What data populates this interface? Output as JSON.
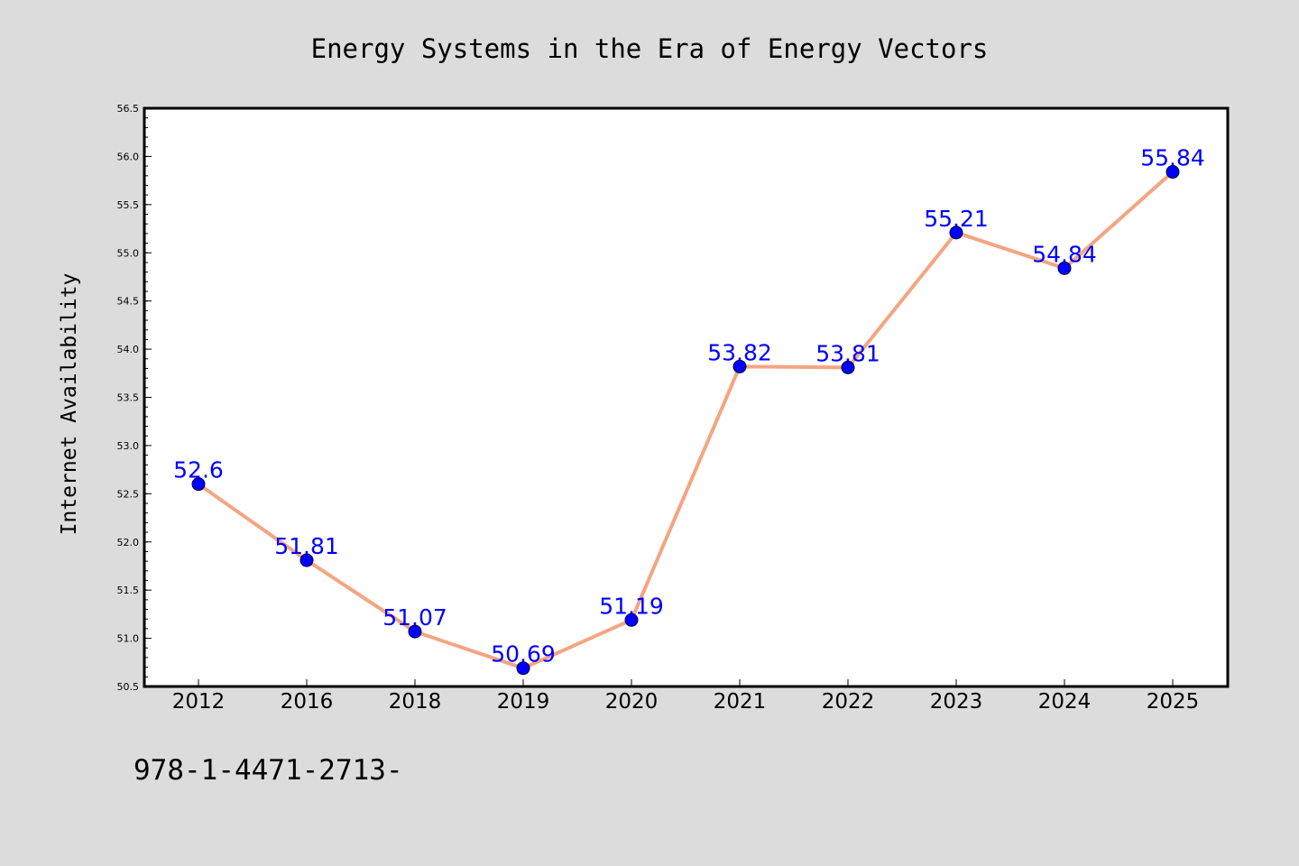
{
  "chart_data": {
    "type": "line",
    "title": "Energy Systems in the Era of Energy Vectors",
    "xlabel": "",
    "ylabel": "Internet Availability",
    "categories": [
      "2012",
      "2016",
      "2018",
      "2019",
      "2020",
      "2021",
      "2022",
      "2023",
      "2024",
      "2025"
    ],
    "series": [
      {
        "values": [
          52.6,
          51.81,
          51.07,
          50.69,
          51.19,
          53.82,
          53.81,
          55.21,
          54.84,
          55.84
        ],
        "data_labels": [
          "52.6",
          "51.81",
          "51.07",
          "50.69",
          "51.19",
          "53.82",
          "53.81",
          "55.21",
          "54.84",
          "55.84"
        ]
      }
    ],
    "ylim": [
      50.5,
      56.5
    ],
    "yticks": [
      "50.5",
      "51.0",
      "51.5",
      "52.0",
      "52.5",
      "53.0",
      "53.5",
      "54.0",
      "54.5",
      "55.0",
      "55.5",
      "56.0",
      "56.5"
    ],
    "grid": false,
    "legend": "none",
    "colors": {
      "line": "#f4a582",
      "marker": "#0000ff",
      "data_label": "#0000ff",
      "plot_background": "#ffffff",
      "figure_background": "#dcdcdc"
    }
  },
  "footer": {
    "isbn": "978-1-4471-2713-"
  }
}
